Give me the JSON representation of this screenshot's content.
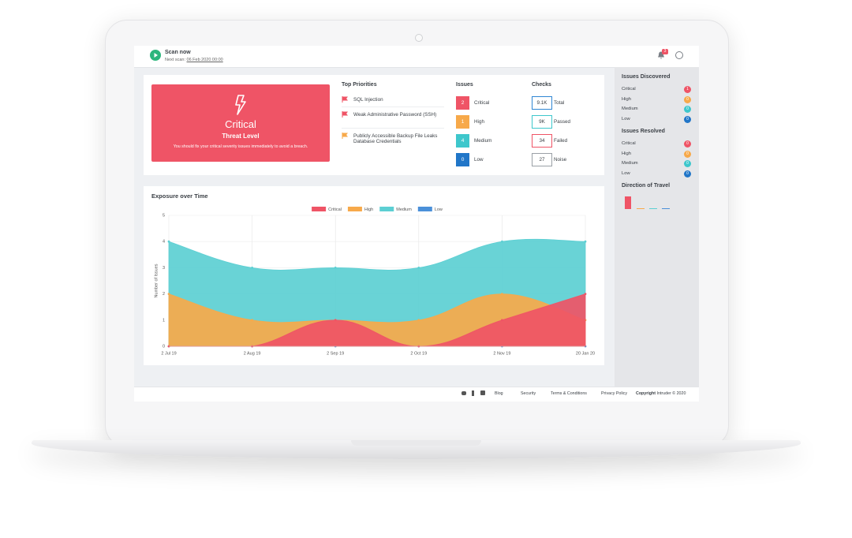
{
  "top_bar": {
    "scan_button": "Scan now",
    "next_scan_label": "Next scan:",
    "next_scan_date": "06 Feb 2020 00:00",
    "notifications": 3
  },
  "threat": {
    "level": "Critical",
    "label": "Threat Level",
    "message": "You should fix your critical severity issues immediately to avoid a breach."
  },
  "top_priorities": {
    "title": "Top Priorities",
    "items": [
      "SQL Injection",
      "Weak Administrative Password (SSH)",
      "Publicly Accessible Backup File Leaks Database Credentials"
    ]
  },
  "issues": {
    "title": "Issues",
    "rows": [
      {
        "count": 2,
        "label": "Critical"
      },
      {
        "count": 1,
        "label": "High"
      },
      {
        "count": 4,
        "label": "Medium"
      },
      {
        "count": 0,
        "label": "Low"
      }
    ]
  },
  "checks": {
    "title": "Checks",
    "rows": [
      {
        "count": "9.1K",
        "label": "Total"
      },
      {
        "count": "9K",
        "label": "Passed"
      },
      {
        "count": 34,
        "label": "Failed"
      },
      {
        "count": 27,
        "label": "Noise"
      }
    ]
  },
  "chart_data": {
    "type": "area",
    "title": "Exposure over Time",
    "y_label": "Number of Issues",
    "categories": [
      "2 Jul 19",
      "2 Aug 19",
      "2 Sep 19",
      "2 Oct 19",
      "2 Nov 19",
      "20 Jan 20"
    ],
    "series": [
      {
        "name": "Critical",
        "color": "#ef5466",
        "values": [
          0,
          0,
          1,
          0,
          1,
          2
        ]
      },
      {
        "name": "High",
        "color": "#f7a94a",
        "values": [
          2,
          1,
          1,
          1,
          2,
          1
        ]
      },
      {
        "name": "Medium",
        "color": "#5ccfd3",
        "values": [
          4,
          3,
          3,
          3,
          4,
          4
        ]
      },
      {
        "name": "Low",
        "color": "#4a90d9",
        "values": [
          0,
          0,
          0,
          0,
          0,
          0
        ]
      }
    ],
    "ylim": [
      0,
      5
    ],
    "yticks": [
      0,
      1,
      2,
      3,
      4,
      5
    ],
    "grid": true,
    "legend": "top"
  },
  "sidebar": {
    "discovered": {
      "title": "Issues Discovered",
      "rows": [
        {
          "label": "Critical",
          "count": 1
        },
        {
          "label": "High",
          "count": 0
        },
        {
          "label": "Medium",
          "count": 0
        },
        {
          "label": "Low",
          "count": 0
        }
      ]
    },
    "resolved": {
      "title": "Issues Resolved",
      "rows": [
        {
          "label": "Critical",
          "count": 0
        },
        {
          "label": "High",
          "count": 0
        },
        {
          "label": "Medium",
          "count": 0
        },
        {
          "label": "Low",
          "count": 0
        }
      ]
    },
    "direction": {
      "title": "Direction of Travel"
    }
  },
  "footer": {
    "links": [
      "Blog",
      "Security",
      "Terms & Conditions",
      "Privacy Policy"
    ],
    "copyright_label": "Copyright",
    "copyright": "Intruder © 2020"
  }
}
